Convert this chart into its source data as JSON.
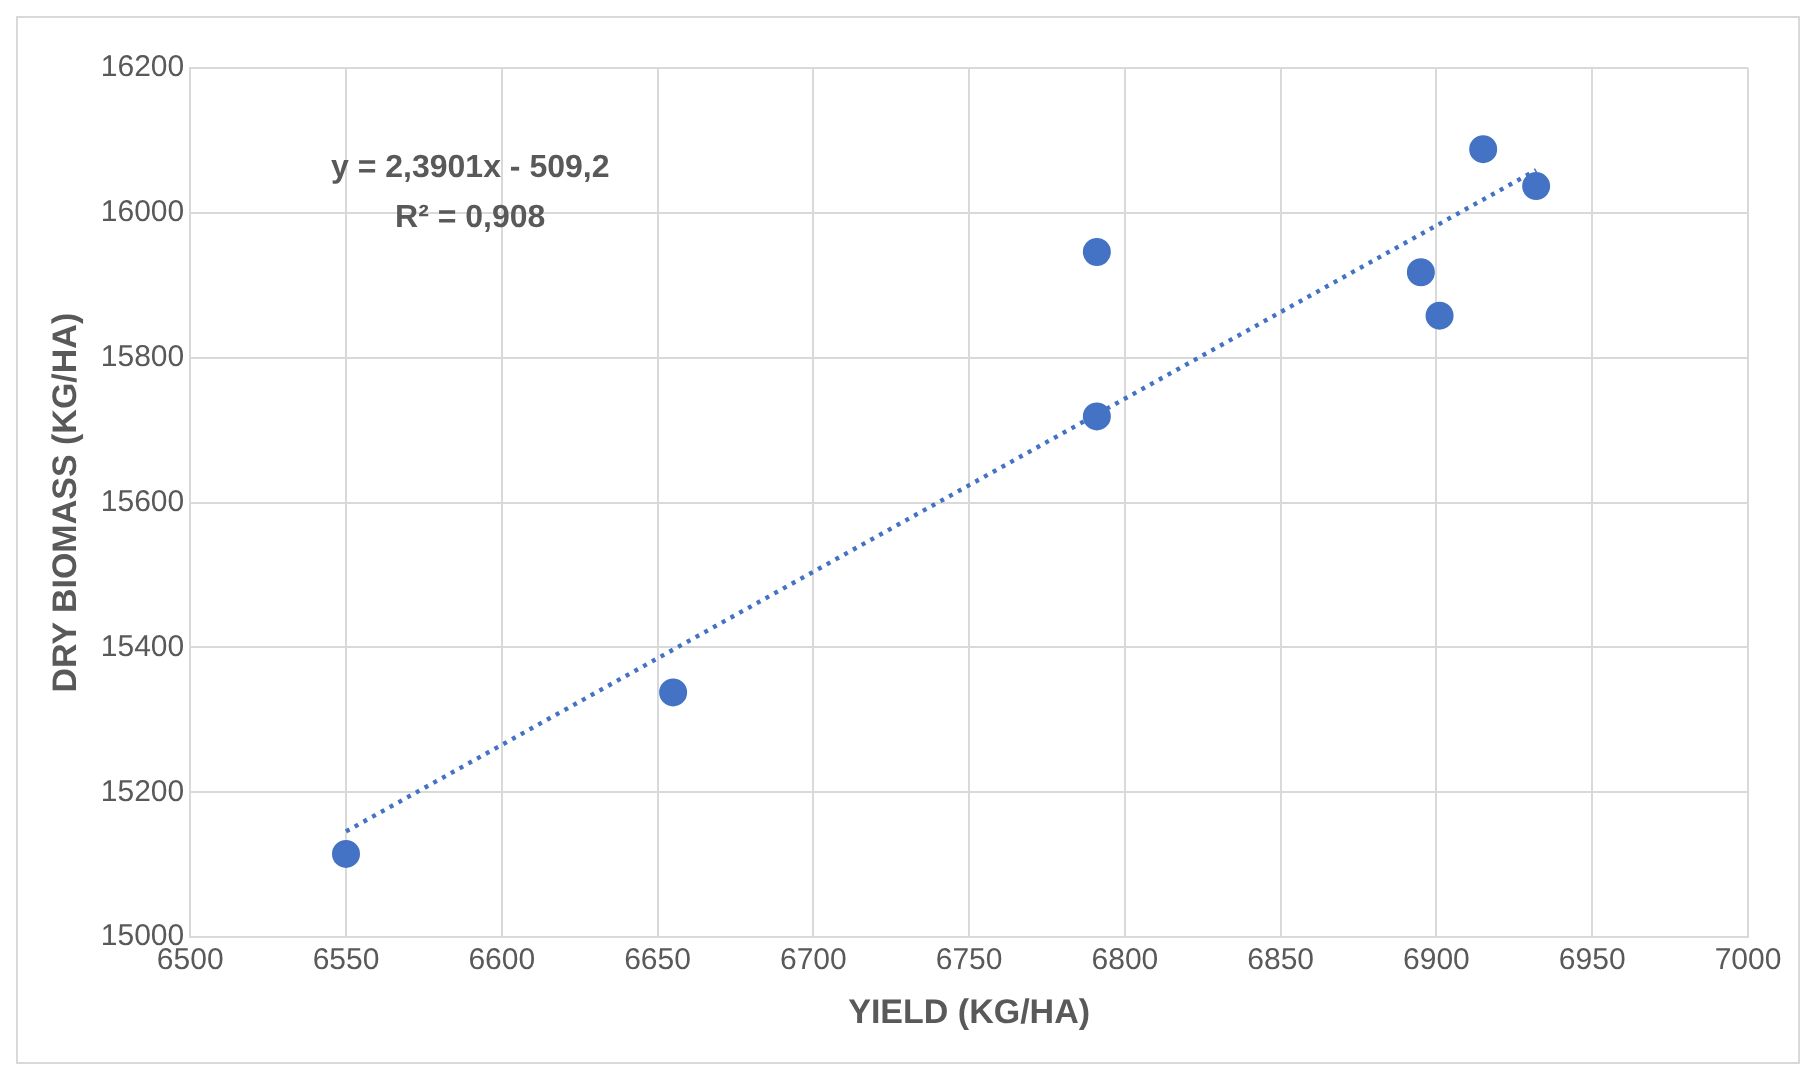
{
  "chart_data": {
    "type": "scatter",
    "xlabel": "YIELD (KG/HA)",
    "ylabel": "DRY BIOMASS (KG/HA)",
    "annotations": [
      "y = 2,3901x - 509,2",
      "R² = 0,908"
    ],
    "series": [
      {
        "color": "#4472c4",
        "marker": "circle",
        "x": [
          6550,
          6655,
          6791,
          6791,
          6895,
          6901,
          6915,
          6932
        ],
        "values": [
          15115,
          15338,
          15719,
          15946,
          15918,
          15858,
          16088,
          16037
        ]
      },
      {
        "type": "line",
        "color": "#4472c4",
        "line_style": "dotted",
        "marker": "none",
        "x": [
          6550,
          6932
        ],
        "values": [
          15146,
          16059
        ]
      }
    ],
    "xlim": [
      6500,
      7000
    ],
    "xticks": [
      6500,
      6550,
      6600,
      6650,
      6700,
      6750,
      6800,
      6850,
      6900,
      6950,
      7000
    ],
    "ylim": [
      15000,
      16200
    ],
    "yticks": [
      15000,
      15200,
      15400,
      15600,
      15800,
      16000,
      16200
    ],
    "grid": true,
    "legend": false
  }
}
